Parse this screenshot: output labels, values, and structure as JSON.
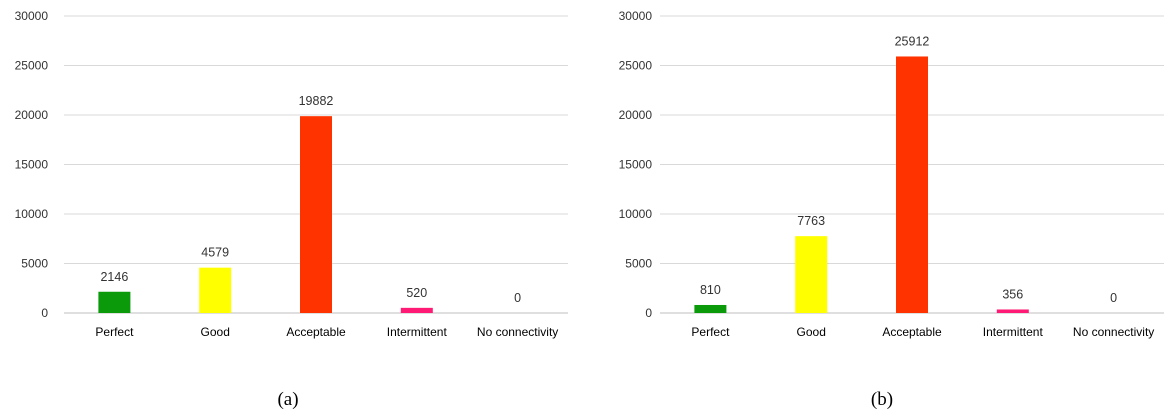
{
  "chart_data": [
    {
      "type": "bar",
      "caption": "(a)",
      "categories": [
        "Perfect",
        "Good",
        "Acceptable",
        "Intermittent",
        "No connectivity"
      ],
      "values": [
        2146,
        4579,
        19882,
        520,
        0
      ],
      "data_labels": [
        "2146",
        "4579",
        "19882",
        "520",
        "0"
      ],
      "colors": [
        "#0a9a0a",
        "#ffff00",
        "#ff3300",
        "#ff1a75",
        "#cccccc"
      ],
      "ylim": [
        0,
        30000
      ],
      "yticks": [
        0,
        5000,
        10000,
        15000,
        20000,
        25000,
        30000
      ],
      "ytick_labels": [
        "0",
        "5000",
        "10000",
        "15000",
        "20000",
        "25000",
        "30000"
      ],
      "grid": true,
      "legend": "none",
      "title": "",
      "xlabel": "",
      "ylabel": ""
    },
    {
      "type": "bar",
      "caption": "(b)",
      "categories": [
        "Perfect",
        "Good",
        "Acceptable",
        "Intermittent",
        "No connectivity"
      ],
      "values": [
        810,
        7763,
        25912,
        356,
        0
      ],
      "data_labels": [
        "810",
        "7763",
        "25912",
        "356",
        "0"
      ],
      "colors": [
        "#0a9a0a",
        "#ffff00",
        "#ff3300",
        "#ff1a75",
        "#cccccc"
      ],
      "ylim": [
        0,
        30000
      ],
      "yticks": [
        0,
        5000,
        10000,
        15000,
        20000,
        25000,
        30000
      ],
      "ytick_labels": [
        "0",
        "5000",
        "10000",
        "15000",
        "20000",
        "25000",
        "30000"
      ],
      "grid": true,
      "legend": "none",
      "title": "",
      "xlabel": "",
      "ylabel": ""
    }
  ]
}
